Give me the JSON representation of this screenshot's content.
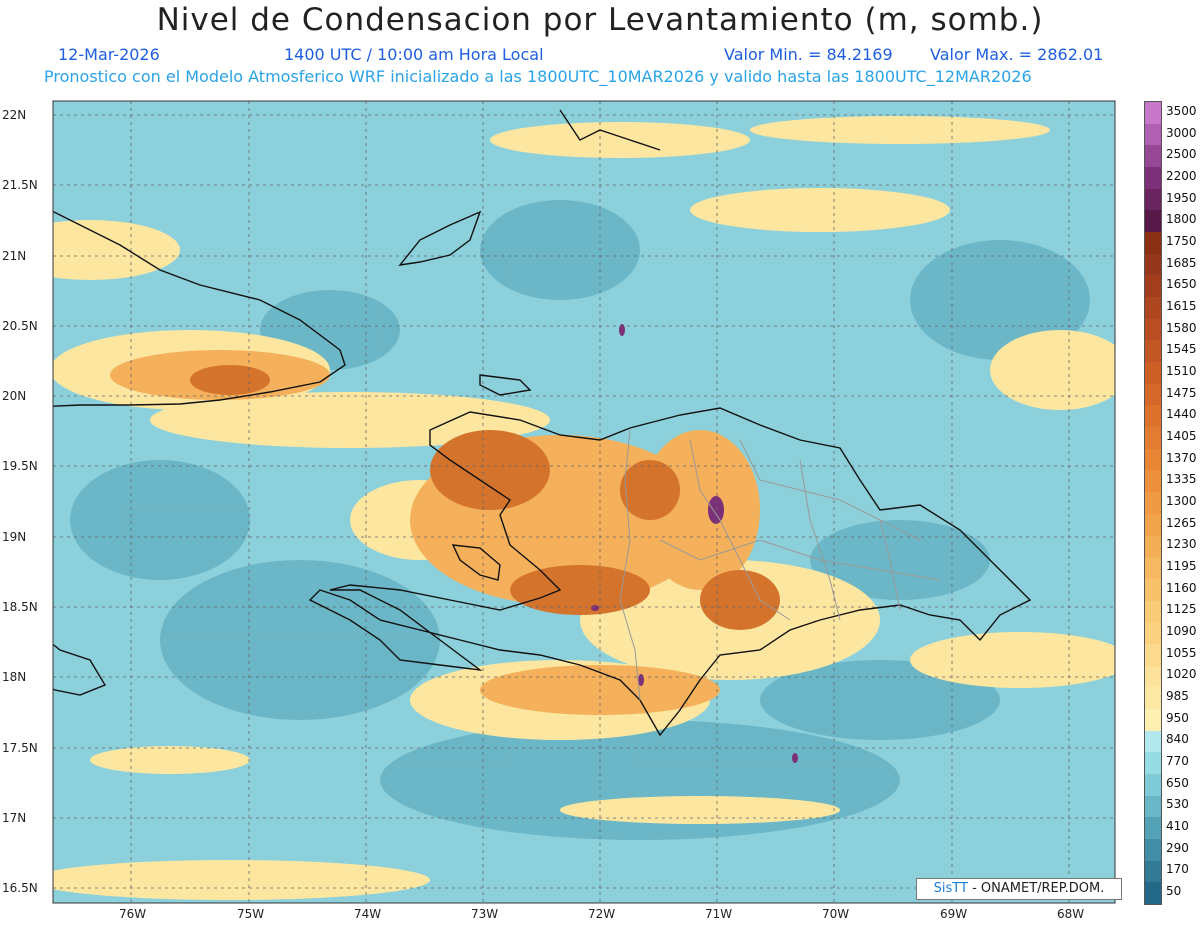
{
  "header": {
    "title": "Nivel de Condensacion por Levantamiento (m, somb.)",
    "date": "12-Mar-2026",
    "time": "1400 UTC / 10:00 am Hora Local",
    "min_label": "Valor Min. = 84.2169",
    "max_label": "Valor Max. = 2862.01",
    "model_line": "Pronostico con el Modelo Atmosferico WRF inicializado a las 1800UTC_10MAR2026 y valido hasta las  1800UTC_12MAR2026"
  },
  "map": {
    "lat_labels": [
      "22N",
      "21.5N",
      "21N",
      "20.5N",
      "20N",
      "19.5N",
      "19N",
      "18.5N",
      "18N",
      "17.5N",
      "17N",
      "16.5N"
    ],
    "lon_labels": [
      "76W",
      "75W",
      "74W",
      "73W",
      "72W",
      "71W",
      "70W",
      "69W",
      "68W"
    ]
  },
  "colorbar": {
    "levels": [
      "3500",
      "3000",
      "2500",
      "2200",
      "1950",
      "1800",
      "1750",
      "1685",
      "1650",
      "1615",
      "1580",
      "1545",
      "1510",
      "1475",
      "1440",
      "1405",
      "1370",
      "1335",
      "1300",
      "1265",
      "1230",
      "1195",
      "1160",
      "1125",
      "1090",
      "1055",
      "1020",
      "985",
      "950",
      "840",
      "770",
      "650",
      "530",
      "410",
      "290",
      "170",
      "50"
    ],
    "colors": [
      "#c878c8",
      "#b060b0",
      "#964896",
      "#7c3078",
      "#6a2460",
      "#581848",
      "#8a2e14",
      "#96361a",
      "#a23e1e",
      "#ae4620",
      "#b84e22",
      "#c25624",
      "#cc5e26",
      "#d46828",
      "#dc722c",
      "#e27c30",
      "#e88636",
      "#ec903c",
      "#f09a44",
      "#f2a44c",
      "#f4ae56",
      "#f6b860",
      "#f8c26a",
      "#f9cb76",
      "#fad282",
      "#fbda8e",
      "#fce29a",
      "#fde8a4",
      "#fef0b0",
      "#b2e8ee",
      "#96dce4",
      "#7ecad6",
      "#68b6c6",
      "#54a2b6",
      "#428ea6",
      "#327a96",
      "#246888"
    ]
  },
  "credit": {
    "brand": "SisTT",
    "text": " - ONAMET/REP.DOM."
  }
}
